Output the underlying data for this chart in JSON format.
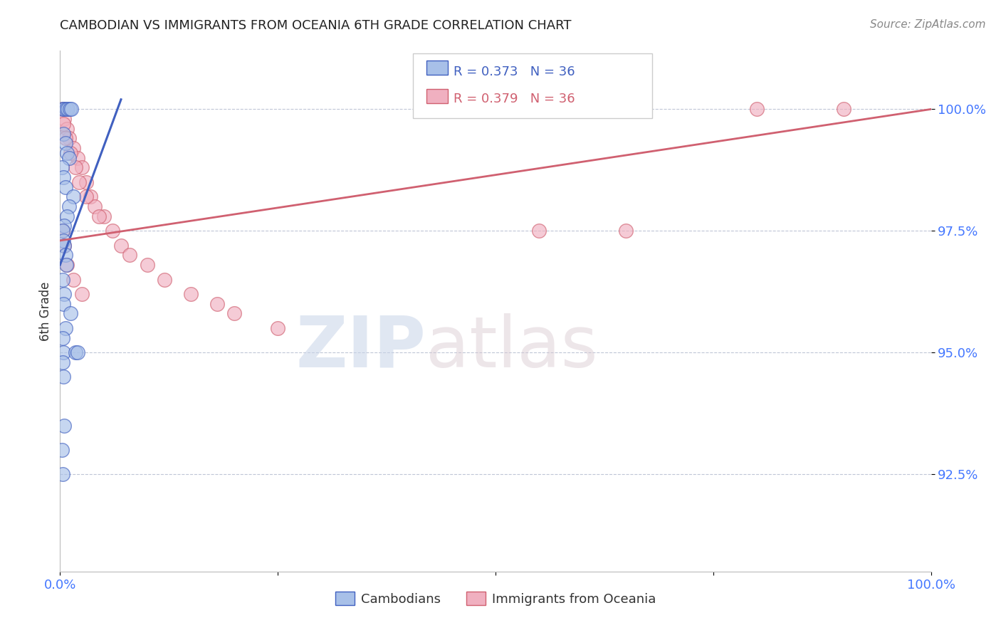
{
  "title": "CAMBODIAN VS IMMIGRANTS FROM OCEANIA 6TH GRADE CORRELATION CHART",
  "source": "Source: ZipAtlas.com",
  "ylabel": "6th Grade",
  "xlim": [
    0.0,
    100.0
  ],
  "ylim": [
    90.5,
    101.2
  ],
  "yticks": [
    92.5,
    95.0,
    97.5,
    100.0
  ],
  "ytick_labels": [
    "92.5%",
    "95.0%",
    "97.5%",
    "100.0%"
  ],
  "xticks": [
    0.0,
    25.0,
    50.0,
    75.0,
    100.0
  ],
  "xtick_labels": [
    "0.0%",
    "",
    "",
    "",
    "100.0%"
  ],
  "blue_color": "#A8C0E8",
  "pink_color": "#F0B0C0",
  "blue_line_color": "#4060C0",
  "pink_line_color": "#D06070",
  "r_blue": 0.373,
  "n_blue": 36,
  "r_pink": 0.379,
  "n_pink": 36,
  "legend_label_blue": "Cambodians",
  "legend_label_pink": "Immigrants from Oceania",
  "watermark_zip": "ZIP",
  "watermark_atlas": "atlas",
  "blue_x": [
    0.3,
    0.5,
    0.7,
    0.9,
    1.1,
    1.3,
    0.4,
    0.6,
    0.8,
    1.0,
    0.2,
    0.4,
    0.6,
    1.5,
    1.0,
    0.8,
    0.5,
    0.3,
    0.4,
    0.5,
    0.6,
    0.7,
    0.3,
    0.5,
    0.4,
    1.2,
    0.6,
    0.3,
    0.4,
    1.8,
    2.0,
    0.3,
    0.4,
    0.5,
    0.2,
    0.3
  ],
  "blue_y": [
    100.0,
    100.0,
    100.0,
    100.0,
    100.0,
    100.0,
    99.5,
    99.3,
    99.1,
    99.0,
    98.8,
    98.6,
    98.4,
    98.2,
    98.0,
    97.8,
    97.6,
    97.5,
    97.3,
    97.2,
    97.0,
    96.8,
    96.5,
    96.2,
    96.0,
    95.8,
    95.5,
    95.3,
    95.0,
    95.0,
    95.0,
    94.8,
    94.5,
    93.5,
    93.0,
    92.5
  ],
  "pink_x": [
    0.3,
    0.5,
    0.8,
    1.0,
    1.5,
    2.0,
    2.5,
    3.0,
    3.5,
    4.0,
    5.0,
    6.0,
    7.0,
    8.0,
    10.0,
    12.0,
    15.0,
    18.0,
    20.0,
    25.0,
    0.4,
    0.6,
    1.2,
    1.8,
    2.2,
    3.0,
    4.5,
    0.3,
    0.5,
    0.8,
    1.5,
    2.5,
    80.0,
    90.0,
    55.0,
    65.0
  ],
  "pink_y": [
    100.0,
    99.8,
    99.6,
    99.4,
    99.2,
    99.0,
    98.8,
    98.5,
    98.2,
    98.0,
    97.8,
    97.5,
    97.2,
    97.0,
    96.8,
    96.5,
    96.2,
    96.0,
    95.8,
    95.5,
    99.7,
    99.4,
    99.1,
    98.8,
    98.5,
    98.2,
    97.8,
    97.5,
    97.2,
    96.8,
    96.5,
    96.2,
    100.0,
    100.0,
    97.5,
    97.5
  ],
  "blue_line_x": [
    0.0,
    7.0
  ],
  "blue_line_y": [
    96.8,
    100.2
  ],
  "pink_line_x": [
    0.0,
    100.0
  ],
  "pink_line_y": [
    97.3,
    100.0
  ]
}
